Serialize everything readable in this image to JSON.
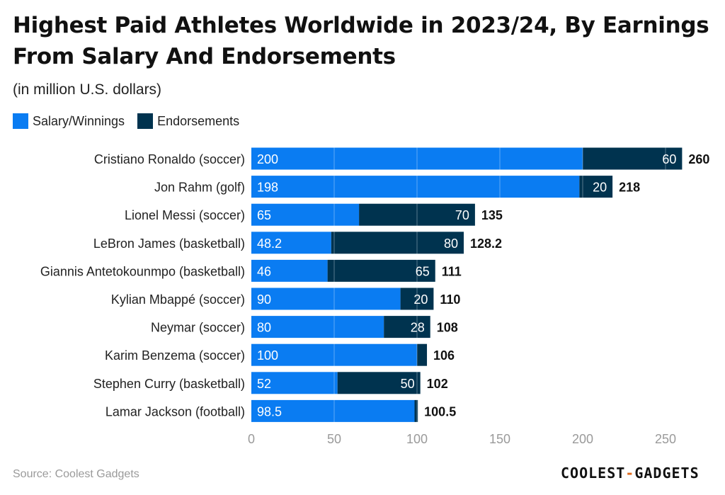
{
  "title": "Highest Paid Athletes Worldwide in 2023/24, By Earnings From Salary And Endorsements",
  "subtitle": "(in million U.S. dollars)",
  "legend": [
    {
      "label": "Salary/Winnings",
      "color": "#0a7cf2"
    },
    {
      "label": "Endorsements",
      "color": "#00334f"
    }
  ],
  "source": "Source: Coolest Gadgets",
  "logo": {
    "part1": "COOLEST",
    "sep": "-",
    "part2": "GADGETS"
  },
  "chart_data": {
    "type": "bar",
    "orientation": "horizontal",
    "stacked": true,
    "categories": [
      "Cristiano Ronaldo (soccer)",
      "Jon Rahm (golf)",
      "Lionel Messi (soccer)",
      "LeBron James (basketball)",
      "Giannis Antetokounmpo (basketball)",
      "Kylian Mbappé (soccer)",
      "Neymar (soccer)",
      "Karim Benzema (soccer)",
      "Stephen Curry (basketball)",
      "Lamar Jackson (football)"
    ],
    "series": [
      {
        "name": "Salary/Winnings",
        "color": "#0a7cf2",
        "values": [
          200,
          198,
          65,
          48.2,
          46,
          90,
          80,
          100,
          52,
          98.5
        ],
        "labels": [
          "200",
          "198",
          "65",
          "48.2",
          "46",
          "90",
          "80",
          "100",
          "52",
          "98.5"
        ]
      },
      {
        "name": "Endorsements",
        "color": "#00334f",
        "values": [
          60,
          20,
          70,
          80,
          65,
          20,
          28,
          6,
          50,
          2
        ],
        "labels": [
          "60",
          "20",
          "70",
          "80",
          "65",
          "20",
          "28",
          "",
          "50",
          ""
        ]
      }
    ],
    "totals": [
      260,
      218,
      135,
      128.2,
      111,
      110,
      108,
      106,
      102,
      100.5
    ],
    "total_labels": [
      "260",
      "218",
      "135",
      "128.2",
      "111",
      "110",
      "108",
      "106",
      "102",
      "100.5"
    ],
    "xlim": [
      0,
      260
    ],
    "xticks": [
      0,
      50,
      100,
      150,
      200,
      250
    ],
    "grid": true,
    "legend_position": "top-left"
  }
}
